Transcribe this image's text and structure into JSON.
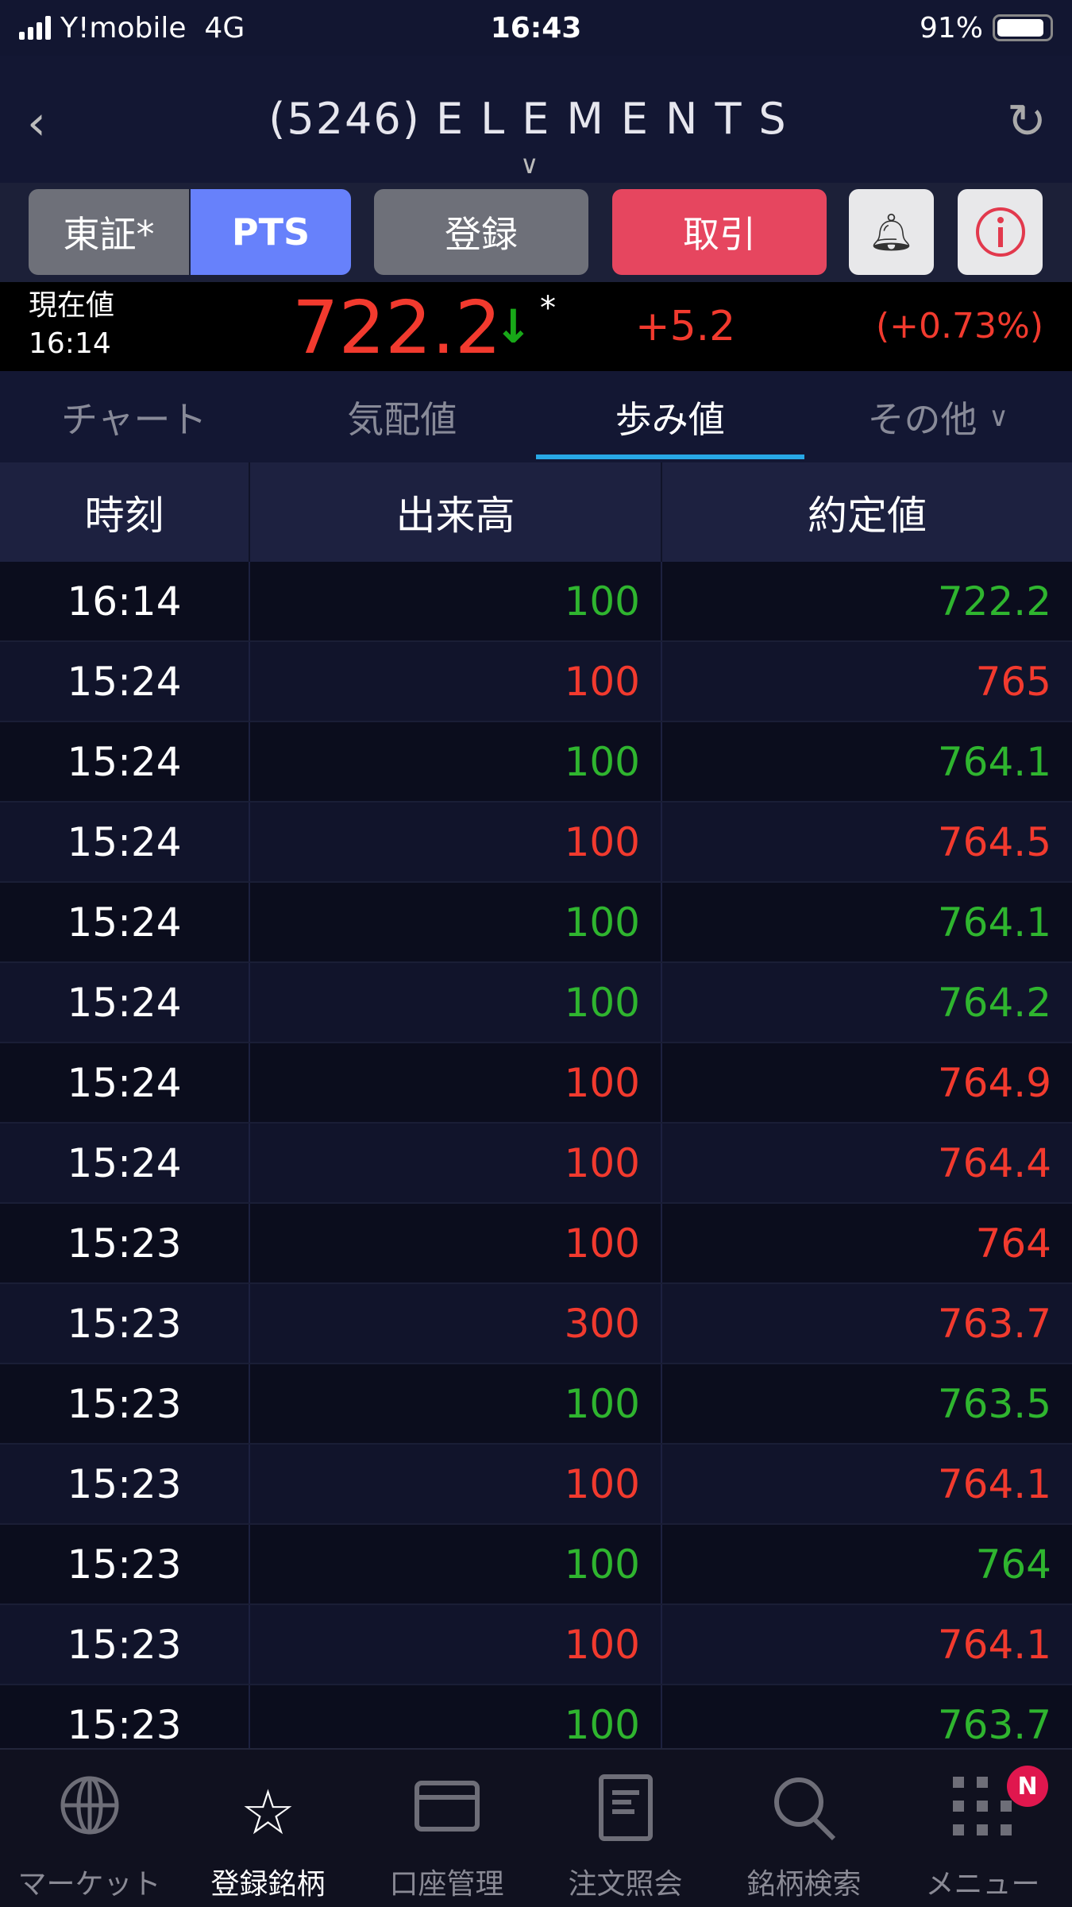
{
  "status_bar": {
    "carrier": "Y!mobile",
    "network": "4G",
    "time": "16:43",
    "battery": "91%"
  },
  "header": {
    "code": "(5246)",
    "name": "ELEMENTS"
  },
  "buttons": {
    "tse": "東証*",
    "pts": "PTS",
    "register": "登録",
    "trade": "取引"
  },
  "price": {
    "label": "現在値",
    "time": "16:14",
    "value": "722.2",
    "mark": "*",
    "change": "+5.2",
    "change_pct": "(+0.73%)",
    "direction": "down"
  },
  "tabs": [
    {
      "label": "チャート"
    },
    {
      "label": "気配値"
    },
    {
      "label": "歩み値",
      "active": true
    },
    {
      "label": "その他"
    }
  ],
  "table": {
    "headers": [
      "時刻",
      "出来高",
      "約定値"
    ],
    "rows": [
      {
        "time": "16:14",
        "volume": "100",
        "price": "722.2",
        "dir": "up"
      },
      {
        "time": "15:24",
        "volume": "100",
        "price": "765",
        "dir": "down"
      },
      {
        "time": "15:24",
        "volume": "100",
        "price": "764.1",
        "dir": "up"
      },
      {
        "time": "15:24",
        "volume": "100",
        "price": "764.5",
        "dir": "down"
      },
      {
        "time": "15:24",
        "volume": "100",
        "price": "764.1",
        "dir": "up"
      },
      {
        "time": "15:24",
        "volume": "100",
        "price": "764.2",
        "dir": "up"
      },
      {
        "time": "15:24",
        "volume": "100",
        "price": "764.9",
        "dir": "down"
      },
      {
        "time": "15:24",
        "volume": "100",
        "price": "764.4",
        "dir": "down"
      },
      {
        "time": "15:23",
        "volume": "100",
        "price": "764",
        "dir": "down"
      },
      {
        "time": "15:23",
        "volume": "300",
        "price": "763.7",
        "dir": "down"
      },
      {
        "time": "15:23",
        "volume": "100",
        "price": "763.5",
        "dir": "up"
      },
      {
        "time": "15:23",
        "volume": "100",
        "price": "764.1",
        "dir": "down"
      },
      {
        "time": "15:23",
        "volume": "100",
        "price": "764",
        "dir": "up"
      },
      {
        "time": "15:23",
        "volume": "100",
        "price": "764.1",
        "dir": "down"
      },
      {
        "time": "15:23",
        "volume": "100",
        "price": "763.7",
        "dir": "up"
      }
    ]
  },
  "tabbar": [
    {
      "label": "マーケット",
      "icon": "globe-icon"
    },
    {
      "label": "登録銘柄",
      "icon": "star-icon",
      "active": true
    },
    {
      "label": "口座管理",
      "icon": "card-icon"
    },
    {
      "label": "注文照会",
      "icon": "document-icon"
    },
    {
      "label": "銘柄検索",
      "icon": "search-icon"
    },
    {
      "label": "メニュー",
      "icon": "grid-icon",
      "badge": "N"
    }
  ],
  "colors": {
    "up": "#2fb52f",
    "down": "#f23a2e",
    "accent": "#6781fb",
    "trade": "#e6465f",
    "tab_indicator": "#28a8e6"
  }
}
